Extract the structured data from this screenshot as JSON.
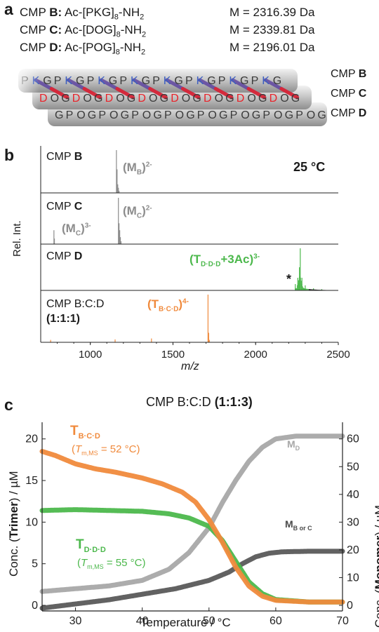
{
  "panel_a": {
    "label": "a",
    "peptides": [
      {
        "name": "CMP ",
        "id": "B",
        "colon": ":",
        "seq_pre": " Ac-[PKG]",
        "sub": "8",
        "seq_post": "-NH",
        "sub2": "2",
        "mass": "M = 2316.39 Da"
      },
      {
        "name": "CMP ",
        "id": "C",
        "colon": ":",
        "seq_pre": " Ac-[DOG]",
        "sub": "8",
        "seq_post": "-NH",
        "sub2": "2",
        "mass": "M = 2339.81 Da"
      },
      {
        "name": "CMP ",
        "id": "D",
        "colon": ":",
        "seq_pre": " Ac-[POG]",
        "sub": "8",
        "seq_post": "-NH",
        "sub2": "2",
        "mass": "M = 2196.01 Da"
      }
    ],
    "helix_seqs": {
      "B": [
        "P",
        "K",
        "G",
        "P",
        "K",
        "G",
        "P",
        "K",
        "G",
        "P",
        "K",
        "G",
        "P",
        "K",
        "G",
        "P",
        "K",
        "G",
        "P",
        "K",
        "G",
        "P",
        "K",
        "G"
      ],
      "C": [
        "D",
        "O",
        "G",
        "D",
        "O",
        "G",
        "D",
        "O",
        "G",
        "D",
        "O",
        "G",
        "D",
        "O",
        "G",
        "D",
        "O",
        "G",
        "D",
        "O",
        "G",
        "D",
        "O",
        "G"
      ],
      "D": [
        "G",
        "P",
        "O",
        "G",
        "P",
        "O",
        "G",
        "P",
        "O",
        "G",
        "P",
        "O",
        "G",
        "P",
        "O",
        "G",
        "P",
        "O",
        "G",
        "P",
        "O",
        "G",
        "P",
        "O",
        "G"
      ]
    },
    "helix_labels": [
      {
        "pre": "CMP ",
        "id": "B"
      },
      {
        "pre": "CMP ",
        "id": "C"
      },
      {
        "pre": "CMP ",
        "id": "D"
      }
    ],
    "colors": {
      "lys": "#3b5fc0",
      "asp": "#e8232a",
      "tube": "#b9b9b9",
      "tube_dark": "#8a8a8a"
    }
  },
  "panel_b": {
    "label": "b",
    "temperature": "25 °C",
    "ylabel": "Rel. Int.",
    "xlabel": "m/z",
    "xticks": [
      "1000",
      "1500",
      "2000",
      "2500"
    ],
    "traces": [
      {
        "title_pre": "CMP ",
        "title_bold": "B",
        "ion_main": "(M",
        "ion_sub": "B",
        "ion_close": ")",
        "ion_sup": "2-"
      },
      {
        "title_pre": "CMP ",
        "title_bold": "C",
        "ion_main": "(M",
        "ion_sub": "C",
        "ion_close": ")",
        "ion_sup": "2-",
        "ion2_main": "(M",
        "ion2_sub": "C",
        "ion2_close": ")",
        "ion2_sup": "3-"
      },
      {
        "title_pre": "CMP ",
        "title_bold": "D",
        "ion_main": "(T",
        "ion_sub": "D·D·D",
        "ion_close": "+3Ac)",
        "ion_sup": "3-",
        "star": "*"
      },
      {
        "title_pre": "CMP B:C:D",
        "title_bold": "(1:1:1)",
        "ion_main": "(T",
        "ion_sub": "B·C·D",
        "ion_close": ")",
        "ion_sup": "4-"
      }
    ],
    "colors": {
      "grey": "#8c8c8c",
      "green": "#4cb84c",
      "orange": "#f08a3c",
      "black": "#1a1a1a"
    }
  },
  "panel_c": {
    "label": "c",
    "title_pre": "CMP B:C:D ",
    "title_bold": "(1:1:3)",
    "xlabel": "Temperature / °C",
    "ylabel_left_pre": "Conc. (",
    "ylabel_left_bold": "Trimer",
    "ylabel_left_post": ") / µM",
    "ylabel_right_pre": "Conc. (",
    "ylabel_right_bold": "Monomer",
    "ylabel_right_post": ") / µM",
    "annotations": {
      "tbcd_main": "T",
      "tbcd_sub": "B·C·D",
      "tbcd_tm": "(",
      "tbcd_tm_it": "T",
      "tbcd_tm_sub": "m,MS",
      "tbcd_tm_val": " = 52 °C)",
      "tddd_main": "T",
      "tddd_sub": "D·D·D",
      "tddd_tm": "(",
      "tddd_tm_it": "T",
      "tddd_tm_sub": "m,MS",
      "tddd_tm_val": " = 55 °C)",
      "md_main": "M",
      "md_sub": "D",
      "mbc_main": "M",
      "mbc_sub": "B or C"
    },
    "colors": {
      "orange": "#f08a3c",
      "green": "#4cb84c",
      "lightgrey": "#a8a8a8",
      "darkgrey": "#5a5a5a"
    }
  },
  "chart_data": [
    {
      "type": "line",
      "title": "",
      "xlabel": "m/z",
      "ylabel": "Rel. Int.",
      "xlim": [
        700,
        2500
      ],
      "xticks": [
        1000,
        1500,
        2000,
        2500
      ],
      "series": [
        {
          "name": "CMP B",
          "x": [
            1158,
            1162,
            1166,
            1170,
            1174
          ],
          "values": [
            1.0,
            0.55,
            0.2,
            0.12,
            0.05
          ]
        },
        {
          "name": "CMP C",
          "x": [
            780,
            783,
            1170,
            1174,
            1178,
            1182,
            1186
          ],
          "values": [
            0.3,
            0.12,
            1.0,
            0.45,
            0.3,
            0.15,
            0.06
          ]
        },
        {
          "name": "CMP D",
          "x": [
            2240,
            2255,
            2265,
            2270,
            2280,
            2300,
            2350,
            2400
          ],
          "values": [
            0.15,
            0.3,
            0.55,
            1.0,
            0.3,
            0.12,
            0.05,
            0.03
          ]
        },
        {
          "name": "CMP B:C:D (1:1:1)",
          "x": [
            760,
            1150,
            1370,
            1712,
            1716,
            1720
          ],
          "values": [
            0.05,
            0.06,
            0.08,
            1.0,
            0.2,
            0.05
          ]
        }
      ]
    },
    {
      "type": "scatter",
      "title": "CMP B:C:D (1:1:3)",
      "xlabel": "Temperature / °C",
      "ylabel": "Conc. (Trimer) / µM",
      "y2label": "Conc. (Monomer) / µM",
      "xlim": [
        25,
        70
      ],
      "ylim": [
        0,
        22
      ],
      "y2lim": [
        0,
        66
      ],
      "xticks": [
        30,
        40,
        50,
        60,
        70
      ],
      "yticks": [
        0,
        5,
        10,
        15,
        20
      ],
      "y2ticks": [
        0,
        10,
        20,
        30,
        40,
        50,
        60
      ],
      "series": [
        {
          "name": "T B·C·D",
          "axis": "left",
          "x": [
            25,
            27,
            30,
            33,
            36,
            40,
            43,
            46,
            48,
            50,
            52,
            54,
            56,
            58,
            60,
            65,
            70
          ],
          "values": [
            18.5,
            18.0,
            17.0,
            16.4,
            16.0,
            15.3,
            14.6,
            13.6,
            12.4,
            10.3,
            7.6,
            4.6,
            2.3,
            1.1,
            0.6,
            0.4,
            0.4
          ]
        },
        {
          "name": "T D·D·D",
          "axis": "left",
          "x": [
            25,
            30,
            35,
            40,
            44,
            47,
            50,
            52,
            54,
            56,
            58,
            60,
            65,
            70
          ],
          "values": [
            11.4,
            11.5,
            11.4,
            11.3,
            11.0,
            10.5,
            9.5,
            7.8,
            5.3,
            2.8,
            1.4,
            0.7,
            0.4,
            0.4
          ]
        },
        {
          "name": "M D",
          "axis": "right",
          "x": [
            25,
            30,
            35,
            40,
            44,
            47,
            50,
            52,
            54,
            56,
            58,
            60,
            63,
            66,
            70
          ],
          "values": [
            5,
            6,
            7,
            9,
            13,
            19,
            28,
            37,
            45,
            52,
            57,
            60,
            61,
            61,
            61
          ]
        },
        {
          "name": "M B or C",
          "axis": "right",
          "x": [
            25,
            30,
            35,
            40,
            45,
            50,
            53,
            55,
            57,
            59,
            61,
            65,
            70
          ],
          "values": [
            -1,
            0.5,
            2,
            4,
            6,
            9,
            12,
            15,
            17.5,
            18.8,
            19.3,
            19.5,
            19.5
          ]
        }
      ]
    }
  ]
}
